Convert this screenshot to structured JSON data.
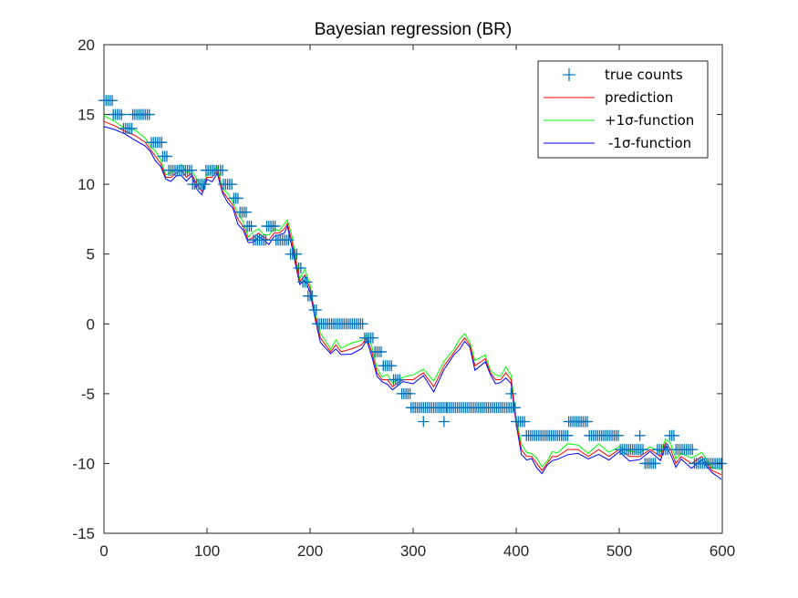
{
  "chart_data": {
    "type": "line",
    "title": "Bayesian regression (BR)",
    "xlabel": "",
    "ylabel": "",
    "xlim": [
      0,
      600
    ],
    "ylim": [
      -15,
      20
    ],
    "xticks": [
      0,
      100,
      200,
      300,
      400,
      500,
      600
    ],
    "yticks": [
      20,
      15,
      10,
      5,
      0,
      -5,
      -10,
      -15
    ],
    "grid": false,
    "legend_position": "top-right",
    "colors": {
      "true_counts": "#0072BD",
      "prediction": "#FF0000",
      "plus_sigma": "#00FF00",
      "minus_sigma": "#0000FF",
      "axes": "#262626"
    },
    "legend": [
      {
        "key": "true_counts",
        "label": "true counts",
        "marker": "plus"
      },
      {
        "key": "prediction",
        "label": "prediction",
        "marker": "line"
      },
      {
        "key": "plus_sigma",
        "label": "+1σ-function",
        "marker": "line"
      },
      {
        "key": "minus_sigma",
        "label": "-1σ-function",
        "marker": "line"
      }
    ],
    "true_counts": {
      "name": "true counts",
      "levels": [
        [
          0,
          8,
          16
        ],
        [
          9,
          18,
          15
        ],
        [
          19,
          27,
          14
        ],
        [
          28,
          45,
          15
        ],
        [
          46,
          56,
          13
        ],
        [
          57,
          62,
          12
        ],
        [
          63,
          85,
          11
        ],
        [
          86,
          98,
          10
        ],
        [
          99,
          115,
          11
        ],
        [
          116,
          125,
          10
        ],
        [
          126,
          131,
          9
        ],
        [
          132,
          138,
          8
        ],
        [
          139,
          144,
          7
        ],
        [
          145,
          157,
          6
        ],
        [
          158,
          166,
          7
        ],
        [
          167,
          180,
          6
        ],
        [
          181,
          188,
          5
        ],
        [
          189,
          192,
          4
        ],
        [
          193,
          197,
          3
        ],
        [
          198,
          203,
          2
        ],
        [
          204,
          206,
          1
        ],
        [
          207,
          210,
          0
        ],
        [
          211,
          252,
          0
        ],
        [
          253,
          262,
          -1
        ],
        [
          263,
          270,
          -2
        ],
        [
          271,
          280,
          -3
        ],
        [
          281,
          288,
          -4
        ],
        [
          289,
          297,
          -5
        ],
        [
          298,
          332,
          -6
        ],
        [
          333,
          388,
          -6
        ],
        [
          389,
          399,
          -6
        ],
        [
          400,
          409,
          -7
        ],
        [
          410,
          450,
          -8
        ],
        [
          451,
          470,
          -7
        ],
        [
          471,
          500,
          -8
        ],
        [
          501,
          524,
          -9
        ],
        [
          525,
          536,
          -10
        ],
        [
          537,
          548,
          -9
        ],
        [
          549,
          554,
          -8
        ],
        [
          555,
          572,
          -9
        ],
        [
          573,
          599,
          -10
        ]
      ],
      "extra_points": [
        [
          310,
          -7
        ],
        [
          330,
          -7
        ],
        [
          520,
          -8
        ],
        [
          395,
          -5
        ]
      ]
    },
    "prediction_curve": {
      "name": "prediction",
      "x": [
        0,
        10,
        20,
        30,
        40,
        45,
        50,
        55,
        60,
        65,
        70,
        75,
        80,
        85,
        90,
        95,
        100,
        105,
        110,
        115,
        120,
        125,
        130,
        135,
        140,
        145,
        150,
        155,
        160,
        165,
        170,
        175,
        178,
        182,
        186,
        190,
        195,
        200,
        205,
        210,
        215,
        220,
        225,
        230,
        240,
        250,
        255,
        260,
        265,
        270,
        275,
        280,
        290,
        300,
        310,
        320,
        330,
        340,
        345,
        350,
        355,
        360,
        370,
        375,
        380,
        385,
        390,
        395,
        400,
        405,
        410,
        415,
        420,
        425,
        430,
        435,
        440,
        450,
        460,
        470,
        480,
        490,
        500,
        510,
        520,
        530,
        540,
        545,
        550,
        555,
        560,
        570,
        580,
        590,
        599
      ],
      "y": [
        14.5,
        14.2,
        13.8,
        13.5,
        13.0,
        12.5,
        12.0,
        11.5,
        10.5,
        10.5,
        10.8,
        11.0,
        10.5,
        10.8,
        10.0,
        9.5,
        10.5,
        10.5,
        11.0,
        9.5,
        9.0,
        8.5,
        7.5,
        7.0,
        6.0,
        6.2,
        6.5,
        6.2,
        6.0,
        6.5,
        6.5,
        6.8,
        7.2,
        6.0,
        4.5,
        3.0,
        3.5,
        2.5,
        0.5,
        -1.0,
        -1.5,
        -2.0,
        -1.5,
        -2.0,
        -1.8,
        -1.5,
        -1.0,
        -2.0,
        -3.5,
        -4.0,
        -4.0,
        -4.5,
        -4.0,
        -4.0,
        -3.5,
        -4.5,
        -3.0,
        -2.0,
        -1.5,
        -1.0,
        -1.5,
        -3.0,
        -2.5,
        -3.5,
        -4.0,
        -4.0,
        -3.5,
        -4.0,
        -7.0,
        -9.0,
        -9.5,
        -9.5,
        -10.0,
        -10.5,
        -10.0,
        -9.5,
        -9.5,
        -9.0,
        -9.0,
        -9.5,
        -9.0,
        -9.5,
        -9.0,
        -9.5,
        -9.5,
        -9.0,
        -9.5,
        -8.5,
        -9.0,
        -10.0,
        -9.5,
        -10.0,
        -9.5,
        -10.5,
        -10.8
      ]
    }
  }
}
